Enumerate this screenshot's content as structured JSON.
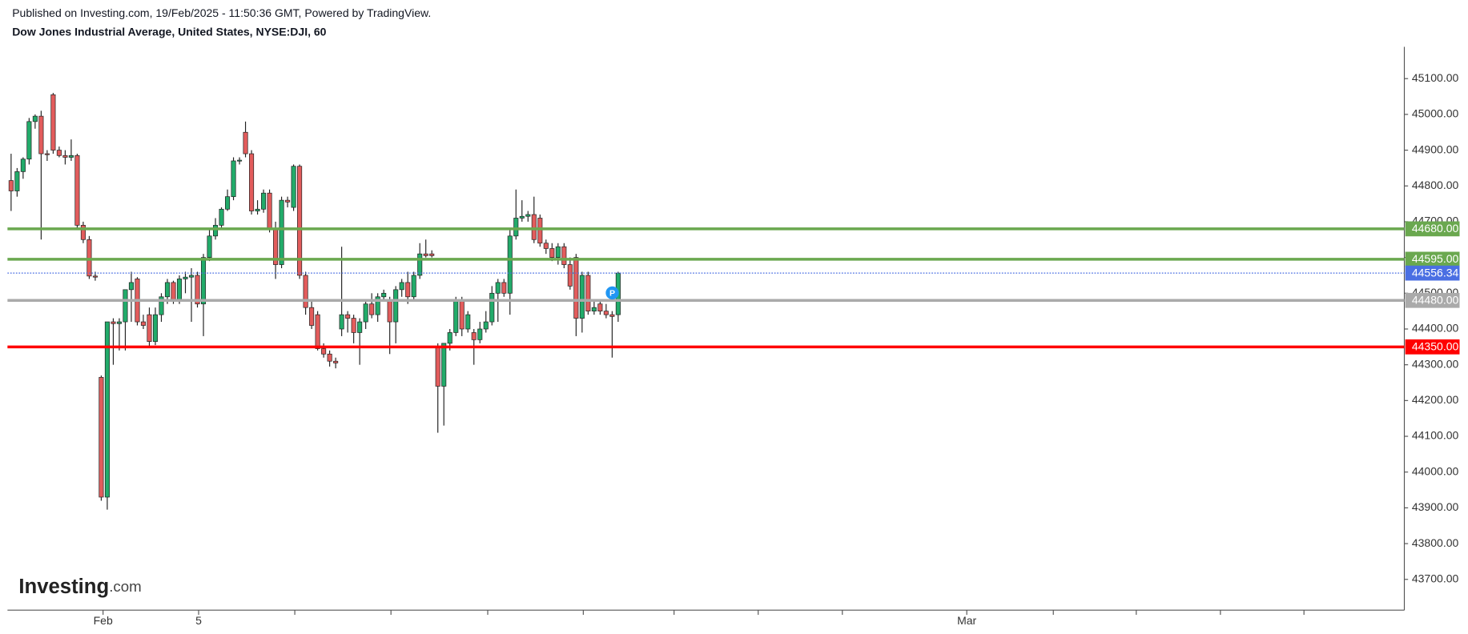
{
  "chart_data": {
    "type": "candlestick",
    "header": "Published on Investing.com, 19/Feb/2025 - 11:50:36 GMT, Powered by TradingView.",
    "title": "Dow Jones Industrial Average, United States, NYSE:DJI, 60",
    "logo": {
      "name": "Investing",
      "suffix": ".com"
    },
    "up_color": "#22ab6a",
    "down_color": "#e25c5c",
    "x": [
      0,
      1,
      2,
      3,
      4,
      5,
      6,
      7,
      8,
      9,
      10,
      11,
      12,
      13,
      14,
      15,
      16,
      17,
      18,
      19,
      20,
      21,
      22,
      23,
      24,
      25,
      26,
      27,
      28,
      29,
      30,
      31,
      32,
      33,
      34,
      35,
      36,
      37,
      38,
      39,
      40,
      41,
      42,
      43,
      44,
      45,
      46,
      47,
      48,
      49,
      50,
      51,
      52,
      53,
      54,
      55,
      56,
      57,
      58,
      59,
      60,
      61,
      62,
      63,
      64,
      65,
      66,
      67,
      68,
      69,
      70,
      71,
      72,
      73,
      74,
      75,
      76,
      77,
      78,
      79,
      80,
      81,
      82,
      83,
      84,
      85,
      86,
      87,
      88,
      89,
      90,
      91,
      92,
      93,
      94,
      95,
      96,
      97,
      98,
      99,
      100,
      101
    ],
    "ohlc": [
      [
        44815,
        44890,
        44730,
        44786
      ],
      [
        44786,
        44850,
        44770,
        44840
      ],
      [
        44840,
        44880,
        44820,
        44875
      ],
      [
        44875,
        44990,
        44860,
        44980
      ],
      [
        44980,
        45000,
        44960,
        44995
      ],
      [
        44995,
        45010,
        44650,
        44890
      ],
      [
        44890,
        44900,
        44870,
        44888
      ],
      [
        45055,
        45060,
        44890,
        44900
      ],
      [
        44900,
        44910,
        44880,
        44885
      ],
      [
        44885,
        44900,
        44860,
        44880
      ],
      [
        44880,
        44930,
        44870,
        44885
      ],
      [
        44885,
        44890,
        44680,
        44690
      ],
      [
        44690,
        44700,
        44640,
        44650
      ],
      [
        44650,
        44660,
        44540,
        44548
      ],
      [
        44548,
        44560,
        44535,
        44545
      ],
      [
        44265,
        44270,
        43920,
        43930
      ],
      [
        43930,
        44420,
        43895,
        44420
      ],
      [
        44420,
        44430,
        44300,
        44415
      ],
      [
        44415,
        44430,
        44340,
        44420
      ],
      [
        44420,
        44510,
        44340,
        44510
      ],
      [
        44510,
        44560,
        44420,
        44530
      ],
      [
        44540,
        44545,
        44410,
        44420
      ],
      [
        44420,
        44440,
        44400,
        44410
      ],
      [
        44440,
        44460,
        44350,
        44365
      ],
      [
        44365,
        44460,
        44355,
        44440
      ],
      [
        44440,
        44500,
        44420,
        44490
      ],
      [
        44490,
        44540,
        44470,
        44530
      ],
      [
        44530,
        44535,
        44470,
        44480
      ],
      [
        44480,
        44550,
        44470,
        44540
      ],
      [
        44540,
        44560,
        44500,
        44545
      ],
      [
        44545,
        44570,
        44420,
        44550
      ],
      [
        44550,
        44560,
        44460,
        44470
      ],
      [
        44470,
        44610,
        44380,
        44600
      ],
      [
        44600,
        44680,
        44590,
        44660
      ],
      [
        44660,
        44710,
        44650,
        44690
      ],
      [
        44690,
        44740,
        44680,
        44735
      ],
      [
        44735,
        44790,
        44730,
        44770
      ],
      [
        44770,
        44880,
        44760,
        44870
      ],
      [
        44870,
        44880,
        44860,
        44872
      ],
      [
        44950,
        44980,
        44880,
        44890
      ],
      [
        44890,
        44900,
        44720,
        44730
      ],
      [
        44730,
        44760,
        44720,
        44735
      ],
      [
        44735,
        44790,
        44725,
        44780
      ],
      [
        44780,
        44790,
        44670,
        44680
      ],
      [
        44680,
        44700,
        44540,
        44580
      ],
      [
        44580,
        44770,
        44570,
        44760
      ],
      [
        44760,
        44770,
        44740,
        44755
      ],
      [
        44740,
        44860,
        44730,
        44855
      ],
      [
        44855,
        44860,
        44540,
        44550
      ],
      [
        44550,
        44560,
        44440,
        44460
      ],
      [
        44460,
        44480,
        44400,
        44410
      ],
      [
        44440,
        44450,
        44340,
        44345
      ],
      [
        44345,
        44360,
        44320,
        44330
      ],
      [
        44330,
        44340,
        44295,
        44310
      ],
      [
        44310,
        44320,
        44290,
        44305
      ],
      [
        44400,
        44630,
        44380,
        44440
      ],
      [
        44440,
        44450,
        44390,
        44430
      ],
      [
        44430,
        44440,
        44360,
        44390
      ],
      [
        44390,
        44430,
        44300,
        44420
      ],
      [
        44420,
        44480,
        44400,
        44470
      ],
      [
        44470,
        44500,
        44430,
        44440
      ],
      [
        44440,
        44500,
        44420,
        44490
      ],
      [
        44490,
        44510,
        44480,
        44500
      ],
      [
        44480,
        44490,
        44330,
        44420
      ],
      [
        44420,
        44520,
        44360,
        44510
      ],
      [
        44510,
        44540,
        44490,
        44530
      ],
      [
        44530,
        44560,
        44470,
        44490
      ],
      [
        44490,
        44560,
        44480,
        44550
      ],
      [
        44550,
        44640,
        44540,
        44610
      ],
      [
        44610,
        44650,
        44600,
        44605
      ],
      [
        44610,
        44620,
        44600,
        44605
      ],
      [
        44350,
        44360,
        44110,
        44240
      ],
      [
        44240,
        44360,
        44130,
        44360
      ],
      [
        44360,
        44400,
        44340,
        44390
      ],
      [
        44390,
        44490,
        44380,
        44480
      ],
      [
        44480,
        44490,
        44380,
        44400
      ],
      [
        44400,
        44450,
        44390,
        44440
      ],
      [
        44390,
        44400,
        44300,
        44370
      ],
      [
        44370,
        44420,
        44360,
        44400
      ],
      [
        44400,
        44450,
        44390,
        44420
      ],
      [
        44420,
        44520,
        44410,
        44500
      ],
      [
        44500,
        44540,
        44420,
        44530
      ],
      [
        44530,
        44540,
        44490,
        44500
      ],
      [
        44500,
        44680,
        44440,
        44660
      ],
      [
        44660,
        44790,
        44650,
        44710
      ],
      [
        44710,
        44760,
        44700,
        44715
      ],
      [
        44715,
        44730,
        44700,
        44720
      ],
      [
        44720,
        44770,
        44640,
        44650
      ],
      [
        44710,
        44720,
        44630,
        44640
      ],
      [
        44640,
        44650,
        44610,
        44625
      ],
      [
        44625,
        44640,
        44590,
        44600
      ],
      [
        44600,
        44640,
        44580,
        44630
      ],
      [
        44630,
        44640,
        44570,
        44580
      ],
      [
        44580,
        44600,
        44510,
        44520
      ],
      [
        44600,
        44610,
        44380,
        44430
      ],
      [
        44430,
        44560,
        44390,
        44550
      ],
      [
        44550,
        44560,
        44440,
        44450
      ],
      [
        44450,
        44480,
        44440,
        44460
      ],
      [
        44470,
        44480,
        44440,
        44450
      ],
      [
        44450,
        44470,
        44430,
        44440
      ],
      [
        44440,
        44450,
        44320,
        44435
      ],
      [
        44440,
        44560,
        44420,
        44556.34
      ]
    ],
    "xlim": [
      -0.6,
      231.8
    ],
    "xticks": [
      {
        "value": 15.3,
        "label": "Feb"
      },
      {
        "value": 31.2,
        "label": "5"
      },
      {
        "value": 47.2,
        "label": null
      },
      {
        "value": 63.2,
        "label": null
      },
      {
        "value": 79.3,
        "label": null
      },
      {
        "value": 95.2,
        "label": null
      },
      {
        "value": 110.3,
        "label": null
      },
      {
        "value": 124.3,
        "label": null
      },
      {
        "value": 138.3,
        "label": null
      },
      {
        "value": 159,
        "label": "Mar"
      },
      {
        "value": 173.4,
        "label": null
      },
      {
        "value": 187.2,
        "label": null
      },
      {
        "value": 201.2,
        "label": null
      },
      {
        "value": 215.1,
        "label": null
      }
    ],
    "ylim": [
      43614,
      45189
    ],
    "yticks": [
      {
        "value": 43700,
        "label": "43700.00"
      },
      {
        "value": 43800,
        "label": "43800.00"
      },
      {
        "value": 43900,
        "label": "43900.00"
      },
      {
        "value": 44000,
        "label": "44000.00"
      },
      {
        "value": 44100,
        "label": "44100.00"
      },
      {
        "value": 44200,
        "label": "44200.00"
      },
      {
        "value": 44300,
        "label": "44300.00"
      },
      {
        "value": 44400,
        "label": "44400.00"
      },
      {
        "value": 44500,
        "label": "44500.00"
      },
      {
        "value": 44600,
        "label": "44600.00"
      },
      {
        "value": 44700,
        "label": "44700.00"
      },
      {
        "value": 44800,
        "label": "44800.00"
      },
      {
        "value": 44900,
        "label": "44900.00"
      },
      {
        "value": 45000,
        "label": "45000.00"
      },
      {
        "value": 45100,
        "label": "45100.00"
      }
    ],
    "levels": [
      {
        "value": 44680,
        "label": "44680.00",
        "color": "#6aa84f",
        "style": "solid"
      },
      {
        "value": 44595,
        "label": "44595.00",
        "color": "#6aa84f",
        "style": "solid"
      },
      {
        "value": 44556.34,
        "color": "#4a6fe3",
        "style": "dotted"
      },
      {
        "value": 44480,
        "label": "44480.00",
        "color": "#aaaaaa",
        "style": "solid"
      },
      {
        "value": 44350,
        "label": "44350.00",
        "color": "#ff0000",
        "style": "solid"
      }
    ]
  }
}
